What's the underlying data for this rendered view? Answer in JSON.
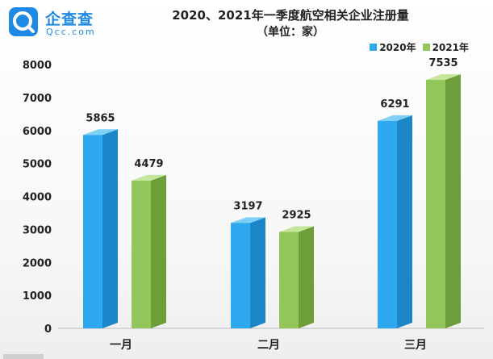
{
  "header": {
    "logo_text": "企查查",
    "logo_sub": "Qcc.com",
    "title": "2020、2021年一季度航空相关企业注册量",
    "subtitle": "（单位：家）"
  },
  "colors": {
    "series_2020": "#2ea8ef",
    "series_2020_side": "#1b86c8",
    "series_2020_top": "#7fd0f7",
    "series_2021": "#93c65a",
    "series_2021_side": "#6e9e3a",
    "series_2021_top": "#c4e59a",
    "brand": "#1e8ae6"
  },
  "chart_data": {
    "type": "bar",
    "categories": [
      "一月",
      "二月",
      "三月"
    ],
    "series": [
      {
        "name": "2020年",
        "values": [
          5865,
          3197,
          6291
        ]
      },
      {
        "name": "2021年",
        "values": [
          4479,
          2925,
          7535
        ]
      }
    ],
    "ylim": [
      0,
      8000
    ],
    "yticks": [
      0,
      1000,
      2000,
      3000,
      4000,
      5000,
      6000,
      7000,
      8000
    ],
    "legend": "top-right",
    "grid": false,
    "style": "3d"
  }
}
